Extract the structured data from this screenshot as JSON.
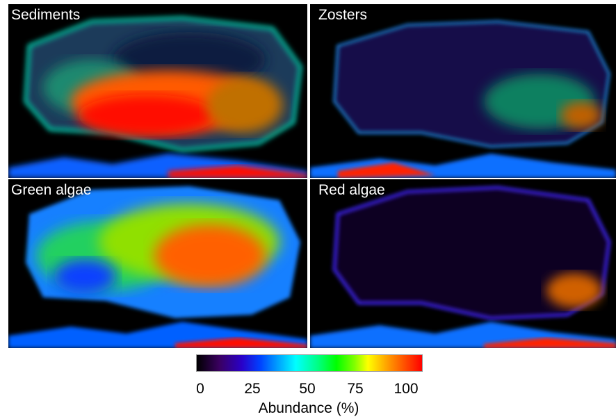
{
  "panels": {
    "sediments": "Sediments",
    "zosters": "Zosters",
    "green_algae": "Green algae",
    "red_algae": "Red algae"
  },
  "colorbar": {
    "ticks": [
      "0",
      "25",
      "50",
      "75",
      "100"
    ],
    "title": "Abundance (%)",
    "colormap": [
      "#000000",
      "#3a0060",
      "#2a00c8",
      "#0040ff",
      "#00a0ff",
      "#00ffff",
      "#00ff80",
      "#00ff00",
      "#80ff00",
      "#ffff00",
      "#ff9000",
      "#ff0000"
    ]
  }
}
